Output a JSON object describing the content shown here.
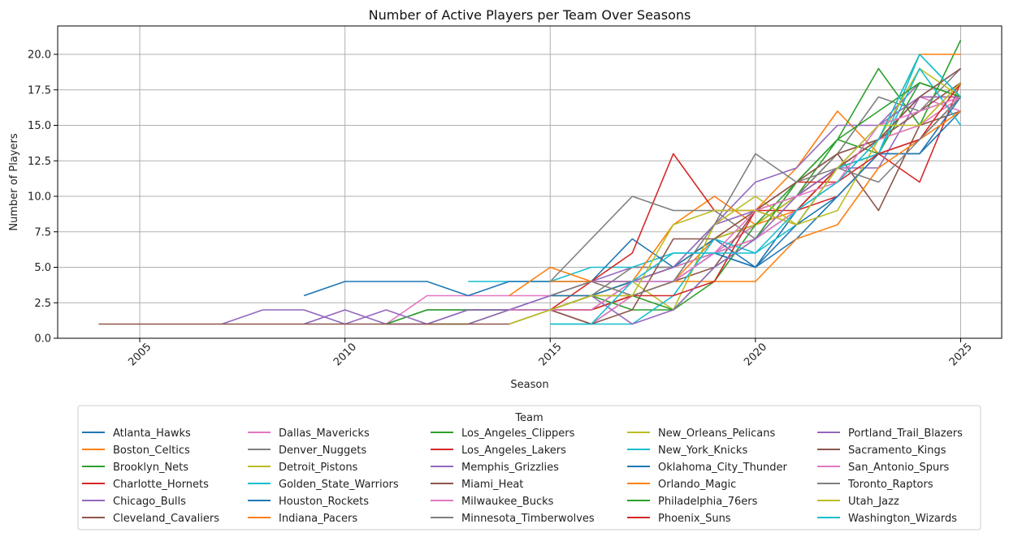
{
  "chart_data": {
    "type": "line",
    "title": "Number of Active Players per Team Over Seasons",
    "xlabel": "Season",
    "ylabel": "Number of Players",
    "xlim": [
      2003,
      2026
    ],
    "ylim": [
      0,
      22
    ],
    "xticks": [
      2005,
      2010,
      2015,
      2020,
      2025
    ],
    "yticks": [
      0.0,
      2.5,
      5.0,
      7.5,
      10.0,
      12.5,
      15.0,
      17.5,
      20.0
    ],
    "ytick_labels": [
      "0.0",
      "2.5",
      "5.0",
      "7.5",
      "10.0",
      "12.5",
      "15.0",
      "17.5",
      "20.0"
    ],
    "grid": true,
    "legend": {
      "title": "Team",
      "placement": "bottom-center",
      "columns": 5
    },
    "series": [
      {
        "name": "Atlanta_Hawks",
        "color": "#1f77b4",
        "x": [
          2015,
          2016,
          2017,
          2018,
          2019,
          2020,
          2021,
          2022,
          2023,
          2024,
          2025
        ],
        "y": [
          2,
          3,
          4,
          5,
          6,
          5,
          9,
          12,
          13,
          14,
          17
        ]
      },
      {
        "name": "Boston_Celtics",
        "color": "#ff7f0e",
        "x": [
          2015,
          2016,
          2017,
          2018,
          2019,
          2020,
          2021,
          2022,
          2023,
          2024,
          2025
        ],
        "y": [
          2,
          2,
          3,
          4,
          7,
          9,
          12,
          16,
          13,
          14,
          17
        ]
      },
      {
        "name": "Brooklyn_Nets",
        "color": "#2ca02c",
        "x": [
          2012,
          2013,
          2014,
          2015,
          2016,
          2017,
          2018,
          2019,
          2020,
          2021,
          2022,
          2023,
          2024,
          2025
        ],
        "y": [
          1,
          1,
          2,
          2,
          3,
          4,
          5,
          6,
          8,
          10,
          14,
          19,
          15,
          21
        ]
      },
      {
        "name": "Charlotte_Hornets",
        "color": "#d62728",
        "x": [
          2015,
          2016,
          2017,
          2018,
          2019,
          2020,
          2021,
          2022,
          2023,
          2024,
          2025
        ],
        "y": [
          2,
          3,
          3,
          4,
          6,
          7,
          9,
          10,
          13,
          11,
          18
        ]
      },
      {
        "name": "Chicago_Bulls",
        "color": "#9467bd",
        "x": [
          2009,
          2010,
          2011,
          2012,
          2013,
          2014,
          2015,
          2016,
          2017,
          2018,
          2019,
          2020,
          2021,
          2022,
          2023,
          2024,
          2025
        ],
        "y": [
          1,
          2,
          1,
          1,
          2,
          2,
          3,
          4,
          5,
          5,
          8,
          11,
          12,
          15,
          15,
          18,
          17
        ]
      },
      {
        "name": "Cleveland_Cavaliers",
        "color": "#8c564b",
        "x": [
          2015,
          2016,
          2017,
          2018,
          2019,
          2020,
          2021,
          2022,
          2023,
          2024,
          2025
        ],
        "y": [
          2,
          2,
          4,
          5,
          7,
          8,
          10,
          13,
          9,
          15,
          16
        ]
      },
      {
        "name": "Dallas_Mavericks",
        "color": "#e377c2",
        "x": [
          2011,
          2012,
          2013,
          2014,
          2015,
          2016,
          2017,
          2018,
          2019,
          2020,
          2021,
          2022,
          2023,
          2024,
          2025
        ],
        "y": [
          1,
          3,
          3,
          3,
          3,
          3,
          4,
          5,
          6,
          8,
          10,
          12,
          14,
          17,
          16
        ]
      },
      {
        "name": "Denver_Nuggets",
        "color": "#7f7f7f",
        "x": [
          2011,
          2012,
          2013,
          2014,
          2015,
          2016,
          2017,
          2018,
          2019,
          2020,
          2021,
          2022,
          2023,
          2024,
          2025
        ],
        "y": [
          1,
          2,
          2,
          2,
          2,
          3,
          5,
          5,
          7,
          8,
          10,
          13,
          14,
          16,
          17
        ]
      },
      {
        "name": "Detroit_Pistons",
        "color": "#bcbd22",
        "x": [
          2012,
          2013,
          2014,
          2015,
          2016,
          2017,
          2018,
          2019,
          2020,
          2021,
          2022,
          2023,
          2024,
          2025
        ],
        "y": [
          1,
          1,
          2,
          2,
          3,
          4,
          5,
          7,
          8,
          10,
          12,
          14,
          15,
          18
        ]
      },
      {
        "name": "Golden_State_Warriors",
        "color": "#17becf",
        "x": [
          2013,
          2014,
          2015,
          2016,
          2017,
          2018,
          2019,
          2020,
          2021,
          2022,
          2023,
          2024,
          2025
        ],
        "y": [
          4,
          4,
          4,
          5,
          5,
          6,
          6,
          7,
          9,
          12,
          13,
          20,
          17
        ]
      },
      {
        "name": "Houston_Rockets",
        "color": "#1f77b4",
        "x": [
          2009,
          2010,
          2011,
          2012,
          2013,
          2014,
          2015,
          2016,
          2017,
          2018,
          2019,
          2020,
          2021,
          2022,
          2023,
          2024,
          2025
        ],
        "y": [
          3,
          4,
          4,
          4,
          3,
          4,
          4,
          4,
          7,
          5,
          7,
          5,
          7,
          10,
          13,
          13,
          16
        ]
      },
      {
        "name": "Indiana_Pacers",
        "color": "#ff7f0e",
        "x": [
          2014,
          2015,
          2016,
          2017,
          2018,
          2019,
          2020,
          2021,
          2022,
          2023,
          2024,
          2025
        ],
        "y": [
          3,
          5,
          4,
          4,
          8,
          10,
          8,
          9,
          12,
          14,
          20,
          20
        ]
      },
      {
        "name": "Los_Angeles_Clippers",
        "color": "#2ca02c",
        "x": [
          2011,
          2012,
          2013,
          2014,
          2015,
          2016,
          2017,
          2018,
          2019,
          2020,
          2021,
          2022,
          2023,
          2024,
          2025
        ],
        "y": [
          1,
          2,
          2,
          2,
          2,
          3,
          2,
          2,
          4,
          8,
          11,
          14,
          13,
          18,
          17
        ]
      },
      {
        "name": "Los_Angeles_Lakers",
        "color": "#d62728",
        "x": [
          2015,
          2016,
          2017,
          2018,
          2019,
          2020,
          2021,
          2022,
          2023,
          2024,
          2025
        ],
        "y": [
          2,
          4,
          6,
          13,
          9,
          9,
          9,
          12,
          14,
          17,
          17
        ]
      },
      {
        "name": "Memphis_Grizzlies",
        "color": "#9467bd",
        "x": [
          2013,
          2014,
          2015,
          2016,
          2017,
          2018,
          2019,
          2020,
          2021,
          2022,
          2023,
          2024,
          2025
        ],
        "y": [
          1,
          2,
          3,
          4,
          4,
          5,
          8,
          9,
          8,
          12,
          12,
          17,
          17
        ]
      },
      {
        "name": "Miami_Heat",
        "color": "#8c564b",
        "x": [
          2015,
          2016,
          2017,
          2018,
          2019,
          2020,
          2021,
          2022,
          2023,
          2024,
          2025
        ],
        "y": [
          2,
          1,
          3,
          4,
          5,
          9,
          10,
          12,
          14,
          16,
          18
        ]
      },
      {
        "name": "Milwaukee_Bucks",
        "color": "#e377c2",
        "x": [
          2015,
          2016,
          2017,
          2018,
          2019,
          2020,
          2021,
          2022,
          2023,
          2024,
          2025
        ],
        "y": [
          2,
          1,
          3,
          4,
          6,
          7,
          9,
          11,
          14,
          15,
          17
        ]
      },
      {
        "name": "Minnesota_Timberwolves",
        "color": "#7f7f7f",
        "x": [
          2015,
          2016,
          2017,
          2018,
          2019,
          2020,
          2021,
          2022,
          2023,
          2024,
          2025
        ],
        "y": [
          4,
          7,
          10,
          9,
          9,
          7,
          11,
          13,
          17,
          16,
          19
        ]
      },
      {
        "name": "New_Orleans_Pelicans",
        "color": "#bcbd22",
        "x": [
          2015,
          2016,
          2017,
          2018,
          2019,
          2020,
          2021,
          2022,
          2023,
          2024,
          2025
        ],
        "y": [
          3,
          3,
          4,
          2,
          8,
          10,
          8,
          9,
          14,
          19,
          17
        ]
      },
      {
        "name": "New_York_Knicks",
        "color": "#17becf",
        "x": [
          2015,
          2016,
          2017,
          2018,
          2019,
          2020,
          2021,
          2022,
          2023,
          2024,
          2025
        ],
        "y": [
          1,
          1,
          1,
          3,
          7,
          6,
          8,
          12,
          13,
          19,
          15
        ]
      },
      {
        "name": "Oklahoma_City_Thunder",
        "color": "#1f77b4",
        "x": [
          2015,
          2016,
          2017,
          2018,
          2019,
          2020,
          2021,
          2022,
          2023,
          2024,
          2025
        ],
        "y": [
          3,
          3,
          4,
          4,
          6,
          5,
          8,
          10,
          13,
          13,
          17
        ]
      },
      {
        "name": "Orlando_Magic",
        "color": "#ff7f0e",
        "x": [
          2015,
          2016,
          2017,
          2018,
          2019,
          2020,
          2021,
          2022,
          2023,
          2024,
          2025
        ],
        "y": [
          4,
          4,
          3,
          4,
          4,
          4,
          7,
          8,
          12,
          14,
          16
        ]
      },
      {
        "name": "Philadelphia_76ers",
        "color": "#2ca02c",
        "x": [
          2015,
          2016,
          2017,
          2018,
          2019,
          2020,
          2021,
          2022,
          2023,
          2024,
          2025
        ],
        "y": [
          2,
          2,
          3,
          2,
          5,
          7,
          11,
          14,
          16,
          18,
          17
        ]
      },
      {
        "name": "Phoenix_Suns",
        "color": "#d62728",
        "x": [
          2015,
          2016,
          2017,
          2018,
          2019,
          2020,
          2021,
          2022,
          2023,
          2024,
          2025
        ],
        "y": [
          2,
          2,
          3,
          3,
          4,
          9,
          11,
          11,
          13,
          14,
          18
        ]
      },
      {
        "name": "Portland_Trail_Blazers",
        "color": "#9467bd",
        "x": [
          2007,
          2008,
          2009,
          2010,
          2011,
          2012,
          2013,
          2014,
          2015,
          2016,
          2017,
          2018,
          2019,
          2020,
          2021,
          2022,
          2023,
          2024,
          2025
        ],
        "y": [
          1,
          2,
          2,
          1,
          2,
          1,
          2,
          2,
          2,
          3,
          1,
          2,
          5,
          7,
          10,
          12,
          15,
          17,
          19
        ]
      },
      {
        "name": "Sacramento_Kings",
        "color": "#8c564b",
        "x": [
          2004,
          2005,
          2006,
          2007,
          2008,
          2009,
          2010,
          2011,
          2012,
          2013,
          2014,
          2015,
          2016,
          2017,
          2018,
          2019,
          2020,
          2021,
          2022,
          2023,
          2024,
          2025
        ],
        "y": [
          1,
          1,
          1,
          1,
          1,
          1,
          1,
          1,
          1,
          1,
          1,
          2,
          1,
          2,
          7,
          7,
          9,
          11,
          13,
          14,
          17,
          19
        ]
      },
      {
        "name": "San_Antonio_Spurs",
        "color": "#e377c2",
        "x": [
          2014,
          2015,
          2016,
          2017,
          2018,
          2019,
          2020,
          2021,
          2022,
          2023,
          2024,
          2025
        ],
        "y": [
          2,
          2,
          2,
          4,
          4,
          6,
          9,
          10,
          11,
          15,
          16,
          17
        ]
      },
      {
        "name": "Toronto_Raptors",
        "color": "#7f7f7f",
        "x": [
          2015,
          2016,
          2017,
          2018,
          2019,
          2020,
          2021,
          2022,
          2023,
          2024,
          2025
        ],
        "y": [
          3,
          4,
          3,
          4,
          8,
          13,
          11,
          12,
          11,
          14,
          17
        ]
      },
      {
        "name": "Utah_Jazz",
        "color": "#bcbd22",
        "x": [
          2014,
          2015,
          2016,
          2017,
          2018,
          2019,
          2020,
          2021,
          2022,
          2023,
          2024,
          2025
        ],
        "y": [
          1,
          2,
          3,
          3,
          8,
          9,
          9,
          8,
          12,
          15,
          15,
          18
        ]
      },
      {
        "name": "Washington_Wizards",
        "color": "#17becf",
        "x": [
          2015,
          2016,
          2017,
          2018,
          2019,
          2020,
          2021,
          2022,
          2023,
          2024,
          2025
        ],
        "y": [
          1,
          1,
          4,
          6,
          6,
          6,
          9,
          11,
          14,
          20,
          17
        ]
      }
    ]
  }
}
